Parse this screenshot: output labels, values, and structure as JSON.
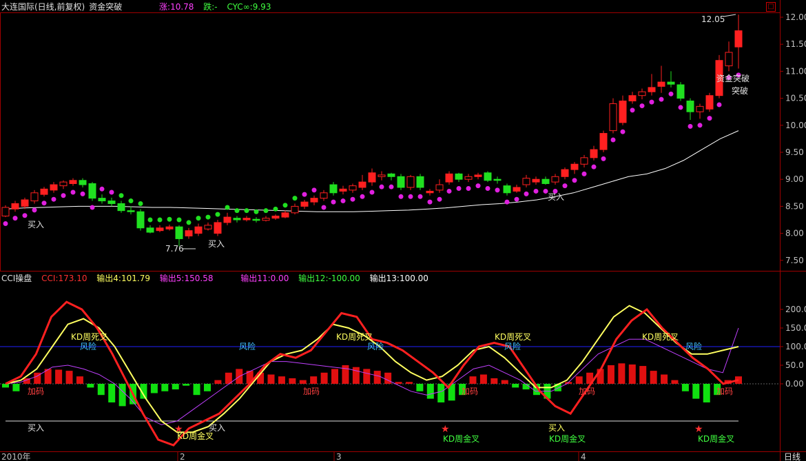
{
  "main": {
    "title": "大连国际(日线,前复权)",
    "indicator": "资金突破",
    "zhang": "涨:10.78",
    "die": "跌:-",
    "cyc": "CYC∞:9.93",
    "price_ticks": [
      "12.00",
      "11.50",
      "11.00",
      "10.50",
      "10.00",
      "9.50",
      "9.00",
      "8.50",
      "8.00",
      "7.50"
    ],
    "high_label": "12.05",
    "low_label": "7.76",
    "buy_label": "买入",
    "break_label": "资金突破",
    "break_short": "突破",
    "colors": {
      "up": "#ff2020",
      "down": "#20e020",
      "dots": "#e020e0",
      "ma": "#ffffff"
    }
  },
  "sub": {
    "title": "CCI操盘",
    "cci": "CCI:173.10",
    "out4": "输出4:101.79",
    "out5": "输出5:150.58",
    "out11": "输出11:0.00",
    "out12": "输出12:-100.00",
    "out13": "输出13:100.00",
    "ticks": [
      "200.0",
      "150.0",
      "100.0",
      "50.0",
      "0.00"
    ],
    "label_dead": "KD周死叉",
    "label_gold": "KD周金叉",
    "label_risk": "风险",
    "label_add": "加码",
    "label_buy": "买入"
  },
  "xaxis": {
    "year": "2010年",
    "months": [
      "2",
      "3",
      "4"
    ],
    "period": "日线"
  },
  "chart_data": {
    "type": "candlestick",
    "yrange": [
      7.3,
      12.2
    ],
    "candles": [
      [
        8.32,
        8.48,
        8.3,
        8.52
      ],
      [
        8.45,
        8.55,
        8.4,
        8.6
      ],
      [
        8.5,
        8.62,
        8.45,
        8.66
      ],
      [
        8.6,
        8.75,
        8.55,
        8.8
      ],
      [
        8.72,
        8.82,
        8.68,
        8.86
      ],
      [
        8.8,
        8.9,
        8.75,
        8.95
      ],
      [
        8.88,
        8.95,
        8.82,
        8.98
      ],
      [
        8.92,
        8.98,
        8.88,
        9.02
      ],
      [
        8.98,
        8.9,
        8.85,
        9.02
      ],
      [
        8.92,
        8.65,
        8.6,
        8.95
      ],
      [
        8.65,
        8.6,
        8.55,
        8.72
      ],
      [
        8.6,
        8.55,
        8.5,
        8.66
      ],
      [
        8.55,
        8.42,
        8.38,
        8.6
      ],
      [
        8.42,
        8.4,
        8.35,
        8.5
      ],
      [
        8.4,
        8.1,
        8.05,
        8.45
      ],
      [
        8.1,
        8.02,
        8.0,
        8.15
      ],
      [
        8.05,
        8.1,
        8.02,
        8.15
      ],
      [
        8.08,
        8.12,
        8.05,
        8.16
      ],
      [
        8.12,
        7.9,
        7.76,
        8.15
      ],
      [
        7.95,
        8.05,
        7.9,
        8.1
      ],
      [
        8.0,
        8.12,
        7.95,
        8.18
      ],
      [
        8.08,
        8.15,
        8.05,
        8.2
      ],
      [
        8.0,
        8.2,
        7.95,
        8.25
      ],
      [
        8.2,
        8.3,
        8.15,
        8.38
      ],
      [
        8.28,
        8.25,
        8.2,
        8.32
      ],
      [
        8.25,
        8.28,
        8.22,
        8.32
      ],
      [
        8.26,
        8.24,
        8.2,
        8.3
      ],
      [
        8.24,
        8.28,
        8.22,
        8.32
      ],
      [
        8.28,
        8.32,
        8.25,
        8.35
      ],
      [
        8.3,
        8.38,
        8.28,
        8.42
      ],
      [
        8.38,
        8.5,
        8.35,
        8.55
      ],
      [
        8.5,
        8.58,
        8.45,
        8.62
      ],
      [
        8.58,
        8.65,
        8.52,
        8.7
      ],
      [
        8.65,
        8.75,
        8.6,
        8.8
      ],
      [
        8.9,
        8.75,
        8.7,
        8.95
      ],
      [
        8.78,
        8.82,
        8.72,
        8.88
      ],
      [
        8.8,
        8.88,
        8.75,
        8.92
      ],
      [
        8.85,
        8.95,
        8.8,
        9.08
      ],
      [
        8.95,
        9.12,
        8.88,
        9.2
      ],
      [
        9.05,
        9.08,
        8.98,
        9.15
      ],
      [
        9.1,
        9.05,
        8.98,
        9.12
      ],
      [
        9.05,
        8.85,
        8.8,
        9.1
      ],
      [
        8.85,
        9.05,
        8.8,
        9.08
      ],
      [
        9.05,
        8.85,
        8.8,
        9.1
      ],
      [
        8.75,
        8.78,
        8.7,
        8.82
      ],
      [
        8.8,
        8.9,
        8.75,
        9.0
      ],
      [
        8.95,
        9.1,
        8.9,
        9.15
      ],
      [
        9.1,
        9.0,
        8.95,
        9.12
      ],
      [
        9.0,
        9.05,
        8.95,
        9.1
      ],
      [
        9.05,
        9.08,
        9.0,
        9.12
      ],
      [
        9.12,
        8.98,
        8.95,
        9.15
      ],
      [
        9.0,
        8.98,
        8.92,
        9.05
      ],
      [
        8.88,
        8.75,
        8.7,
        8.92
      ],
      [
        8.78,
        8.85,
        8.75,
        8.9
      ],
      [
        8.9,
        9.02,
        8.85,
        9.08
      ],
      [
        8.95,
        9.0,
        8.9,
        9.05
      ],
      [
        9.0,
        8.92,
        8.9,
        9.05
      ],
      [
        8.95,
        9.05,
        8.9,
        9.1
      ],
      [
        9.05,
        9.18,
        9.0,
        9.22
      ],
      [
        9.18,
        9.28,
        9.1,
        9.32
      ],
      [
        9.28,
        9.4,
        9.22,
        9.45
      ],
      [
        9.4,
        9.55,
        9.35,
        9.62
      ],
      [
        9.55,
        9.85,
        9.5,
        9.9
      ],
      [
        9.9,
        10.4,
        9.85,
        10.5
      ],
      [
        10.05,
        10.45,
        10.0,
        10.55
      ],
      [
        10.45,
        10.55,
        10.4,
        10.62
      ],
      [
        10.55,
        10.62,
        10.48,
        10.68
      ],
      [
        10.62,
        10.7,
        10.55,
        10.95
      ],
      [
        10.72,
        10.8,
        10.6,
        11.1
      ],
      [
        10.8,
        10.76,
        10.7,
        11.0
      ],
      [
        10.75,
        10.5,
        10.45,
        10.8
      ],
      [
        10.45,
        10.25,
        10.1,
        10.5
      ],
      [
        10.25,
        10.35,
        10.12,
        10.4
      ],
      [
        10.3,
        10.55,
        10.25,
        10.6
      ],
      [
        10.55,
        11.2,
        10.5,
        11.3
      ],
      [
        11.1,
        11.35,
        11.0,
        11.55
      ],
      [
        11.45,
        11.75,
        11.05,
        12.05
      ]
    ],
    "ma": [
      8.45,
      8.47,
      8.48,
      8.49,
      8.5,
      8.5,
      8.5,
      8.49,
      8.48,
      8.48,
      8.47,
      8.46,
      8.45,
      8.44,
      8.43,
      8.42,
      8.41,
      8.4,
      8.4,
      8.4,
      8.41,
      8.42,
      8.43,
      8.45,
      8.47,
      8.5,
      8.53,
      8.55,
      8.58,
      8.62,
      8.68,
      8.75,
      8.85,
      8.95,
      9.05,
      9.1,
      9.2,
      9.35,
      9.55,
      9.75,
      9.9
    ]
  }
}
